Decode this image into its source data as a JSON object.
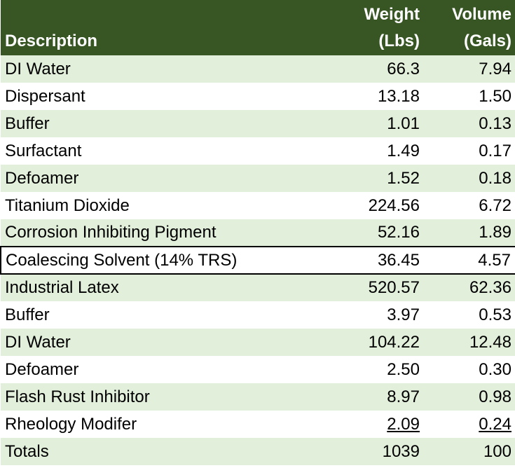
{
  "table": {
    "headers": {
      "description": "Description",
      "weight_line1": "Weight",
      "weight_line2": "(Lbs)",
      "volume_line1": "Volume",
      "volume_line2": "(Gals)"
    },
    "rows": [
      {
        "description": "DI Water",
        "weight": "66.3",
        "volume": "7.94"
      },
      {
        "description": "Dispersant",
        "weight": "13.18",
        "volume": "1.50"
      },
      {
        "description": "Buffer",
        "weight": "1.01",
        "volume": "0.13"
      },
      {
        "description": "Surfactant",
        "weight": "1.49",
        "volume": "0.17"
      },
      {
        "description": "Defoamer",
        "weight": "1.52",
        "volume": "0.18"
      },
      {
        "description": "Titanium Dioxide",
        "weight": "224.56",
        "volume": "6.72"
      },
      {
        "description": "Corrosion Inhibiting Pigment",
        "weight": "52.16",
        "volume": "1.89"
      },
      {
        "description": "Coalescing Solvent (14% TRS)",
        "weight": "36.45",
        "volume": "4.57"
      },
      {
        "description": "Industrial Latex",
        "weight": "520.57",
        "volume": "62.36"
      },
      {
        "description": "Buffer",
        "weight": "3.97",
        "volume": "0.53"
      },
      {
        "description": "DI Water",
        "weight": "104.22",
        "volume": "12.48"
      },
      {
        "description": "Defoamer",
        "weight": "2.50",
        "volume": "0.30"
      },
      {
        "description": "Flash Rust Inhibitor",
        "weight": "8.97",
        "volume": "0.98"
      },
      {
        "description": "Rheology Modifer",
        "weight": "2.09",
        "volume": "0.24"
      }
    ],
    "totals": {
      "description": "Totals",
      "weight": "1039",
      "volume": "100"
    }
  },
  "colors": {
    "header_bg": "#375623",
    "header_text": "#ffffff",
    "band_shade": "#e2efda",
    "band_plain": "#ffffff",
    "selection_border": "#000000"
  }
}
